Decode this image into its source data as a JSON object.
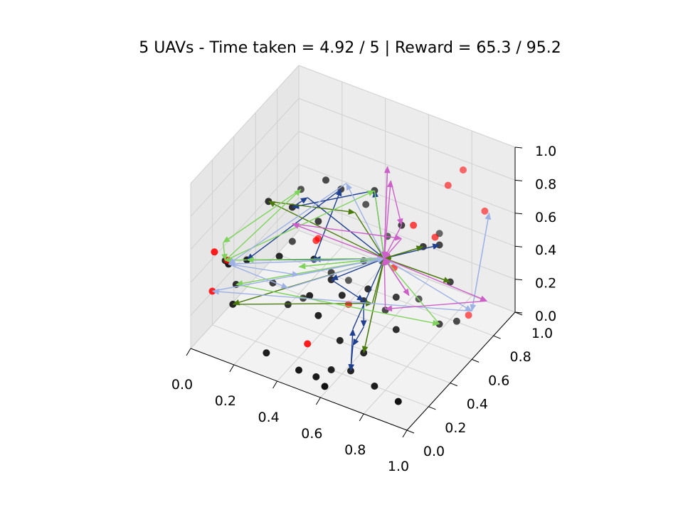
{
  "chart_data": {
    "type": "scatter",
    "projection": "3d",
    "title": "5 UAVs - Time taken = 4.92 / 5 | Reward = 65.3 / 95.2",
    "grid": true,
    "xlim": [
      0,
      1
    ],
    "ylim": [
      0,
      1
    ],
    "zlim": [
      0,
      1
    ],
    "xticks": [
      "0.0",
      "0.2",
      "0.4",
      "0.6",
      "0.8",
      "1.0"
    ],
    "yticks": [
      "0.0",
      "0.2",
      "0.4",
      "0.6",
      "0.8",
      "1.0"
    ],
    "zticks": [
      "0.0",
      "0.2",
      "0.4",
      "0.6",
      "0.8",
      "1.0"
    ],
    "depot": [
      0.62,
      0.55,
      0.46
    ],
    "unvisited_targets": [
      [
        0.1,
        0.02,
        0.62
      ],
      [
        0.16,
        0.02,
        0.6
      ],
      [
        0.05,
        0.1,
        0.3
      ],
      [
        0.48,
        0.12,
        0.18
      ],
      [
        0.86,
        0.85,
        0.02
      ],
      [
        0.3,
        0.58,
        0.4
      ],
      [
        0.33,
        0.5,
        0.46
      ],
      [
        0.58,
        0.3,
        0.34
      ],
      [
        0.76,
        0.86,
        0.75
      ],
      [
        0.8,
        0.92,
        0.82
      ],
      [
        0.9,
        0.92,
        0.62
      ],
      [
        0.78,
        0.7,
        0.56
      ],
      [
        0.6,
        0.68,
        0.3
      ],
      [
        0.72,
        0.62,
        0.66
      ]
    ],
    "visited_targets": [
      [
        0.3,
        0.1,
        0.05
      ],
      [
        0.45,
        0.1,
        0.02
      ],
      [
        0.52,
        0.12,
        0.0
      ],
      [
        0.58,
        0.08,
        0.0
      ],
      [
        0.55,
        0.2,
        0.0
      ],
      [
        0.62,
        0.24,
        0.0
      ],
      [
        0.75,
        0.2,
        0.0
      ],
      [
        0.88,
        0.16,
        0.0
      ],
      [
        0.55,
        0.28,
        0.12
      ],
      [
        0.66,
        0.28,
        0.1
      ],
      [
        0.12,
        0.15,
        0.22
      ],
      [
        0.1,
        0.22,
        0.28
      ],
      [
        0.2,
        0.12,
        0.55
      ],
      [
        0.15,
        0.05,
        0.55
      ],
      [
        0.3,
        0.22,
        0.55
      ],
      [
        0.48,
        0.18,
        0.65
      ],
      [
        0.22,
        0.28,
        0.8
      ],
      [
        0.32,
        0.3,
        0.8
      ],
      [
        0.42,
        0.55,
        0.78
      ],
      [
        0.55,
        0.6,
        0.8
      ],
      [
        0.7,
        0.55,
        0.7
      ],
      [
        0.8,
        0.55,
        0.62
      ],
      [
        0.84,
        0.62,
        0.6
      ],
      [
        0.45,
        0.2,
        0.4
      ],
      [
        0.5,
        0.3,
        0.45
      ],
      [
        0.55,
        0.3,
        0.38
      ],
      [
        0.6,
        0.4,
        0.3
      ],
      [
        0.64,
        0.36,
        0.42
      ],
      [
        0.7,
        0.5,
        0.3
      ],
      [
        0.88,
        0.7,
        0.1
      ],
      [
        0.84,
        0.62,
        0.12
      ],
      [
        0.5,
        0.6,
        0.35
      ],
      [
        0.7,
        0.9,
        0.4
      ],
      [
        0.2,
        0.62,
        0.62
      ],
      [
        0.35,
        0.55,
        0.8
      ],
      [
        0.05,
        0.22,
        0.4
      ],
      [
        0.18,
        0.4,
        0.2
      ],
      [
        0.28,
        0.48,
        0.1
      ],
      [
        0.38,
        0.7,
        0.1
      ],
      [
        0.6,
        0.6,
        0.1
      ],
      [
        0.68,
        0.75,
        0.1
      ],
      [
        0.52,
        0.78,
        0.38
      ],
      [
        0.4,
        0.5,
        0.3
      ],
      [
        0.3,
        0.3,
        0.2
      ],
      [
        0.48,
        0.22,
        0.28
      ],
      [
        0.22,
        0.5,
        0.4
      ],
      [
        0.9,
        0.6,
        0.42
      ],
      [
        0.75,
        0.4,
        0.2
      ],
      [
        0.36,
        0.46,
        0.62
      ],
      [
        0.46,
        0.7,
        0.6
      ]
    ],
    "routes": [
      {
        "color": "#1f3f8f",
        "points": [
          [
            0.62,
            0.55,
            0.46
          ],
          [
            0.5,
            0.3,
            0.45
          ],
          [
            0.6,
            0.4,
            0.3
          ],
          [
            0.62,
            0.36,
            0.18
          ],
          [
            0.6,
            0.3,
            0.1
          ],
          [
            0.62,
            0.24,
            0.0
          ],
          [
            0.6,
            0.3,
            0.2
          ],
          [
            0.62,
            0.55,
            0.46
          ],
          [
            0.48,
            0.18,
            0.65
          ],
          [
            0.42,
            0.55,
            0.78
          ],
          [
            0.2,
            0.12,
            0.55
          ],
          [
            0.4,
            0.4,
            0.45
          ],
          [
            0.62,
            0.55,
            0.46
          ],
          [
            0.55,
            0.6,
            0.8
          ],
          [
            0.32,
            0.3,
            0.8
          ],
          [
            0.3,
            0.48,
            0.72
          ],
          [
            0.62,
            0.55,
            0.46
          ],
          [
            0.84,
            0.62,
            0.6
          ]
        ]
      },
      {
        "color": "#4a7a0c",
        "points": [
          [
            0.62,
            0.55,
            0.46
          ],
          [
            0.22,
            0.28,
            0.8
          ],
          [
            0.5,
            0.52,
            0.7
          ],
          [
            0.62,
            0.55,
            0.46
          ],
          [
            0.12,
            0.15,
            0.22
          ],
          [
            0.7,
            0.28,
            0.42
          ],
          [
            0.62,
            0.55,
            0.46
          ],
          [
            0.8,
            0.55,
            0.62
          ],
          [
            0.62,
            0.55,
            0.46
          ],
          [
            0.9,
            0.6,
            0.42
          ],
          [
            0.62,
            0.55,
            0.46
          ],
          [
            0.66,
            0.28,
            0.1
          ],
          [
            0.62,
            0.55,
            0.46
          ]
        ]
      },
      {
        "color": "#7ed35a",
        "points": [
          [
            0.62,
            0.55,
            0.46
          ],
          [
            0.2,
            0.12,
            0.55
          ],
          [
            0.05,
            0.22,
            0.4
          ],
          [
            0.2,
            0.62,
            0.62
          ],
          [
            0.1,
            0.1,
            0.62
          ],
          [
            0.05,
            0.22,
            0.4
          ],
          [
            0.55,
            0.6,
            0.8
          ],
          [
            0.62,
            0.55,
            0.46
          ],
          [
            0.4,
            0.2,
            0.55
          ],
          [
            0.62,
            0.55,
            0.46
          ],
          [
            0.1,
            0.22,
            0.28
          ],
          [
            0.84,
            0.62,
            0.12
          ],
          [
            0.62,
            0.55,
            0.46
          ]
        ]
      },
      {
        "color": "#9db1e4",
        "points": [
          [
            0.62,
            0.55,
            0.46
          ],
          [
            0.15,
            0.05,
            0.55
          ],
          [
            0.4,
            0.2,
            0.5
          ],
          [
            0.62,
            0.55,
            0.46
          ],
          [
            0.42,
            0.6,
            0.78
          ],
          [
            0.15,
            0.05,
            0.55
          ],
          [
            0.3,
            0.3,
            0.3
          ],
          [
            0.62,
            0.55,
            0.46
          ],
          [
            0.9,
            0.8,
            0.1
          ],
          [
            0.92,
            0.92,
            0.62
          ],
          [
            0.9,
            0.8,
            0.1
          ],
          [
            0.05,
            0.1,
            0.3
          ],
          [
            0.62,
            0.55,
            0.46
          ]
        ]
      },
      {
        "color": "#cc5fc8",
        "points": [
          [
            0.62,
            0.55,
            0.46
          ],
          [
            0.6,
            0.65,
            0.85
          ],
          [
            0.7,
            0.55,
            0.7
          ],
          [
            0.62,
            0.55,
            0.46
          ],
          [
            0.32,
            0.3,
            0.7
          ],
          [
            0.7,
            0.55,
            0.62
          ],
          [
            0.62,
            0.55,
            0.46
          ],
          [
            0.92,
            0.9,
            0.1
          ],
          [
            0.7,
            0.4,
            0.3
          ],
          [
            0.62,
            0.55,
            0.46
          ],
          [
            0.75,
            0.52,
            0.32
          ],
          [
            0.62,
            0.55,
            0.46
          ],
          [
            0.56,
            0.7,
            0.88
          ],
          [
            0.62,
            0.55,
            0.46
          ]
        ]
      }
    ]
  }
}
